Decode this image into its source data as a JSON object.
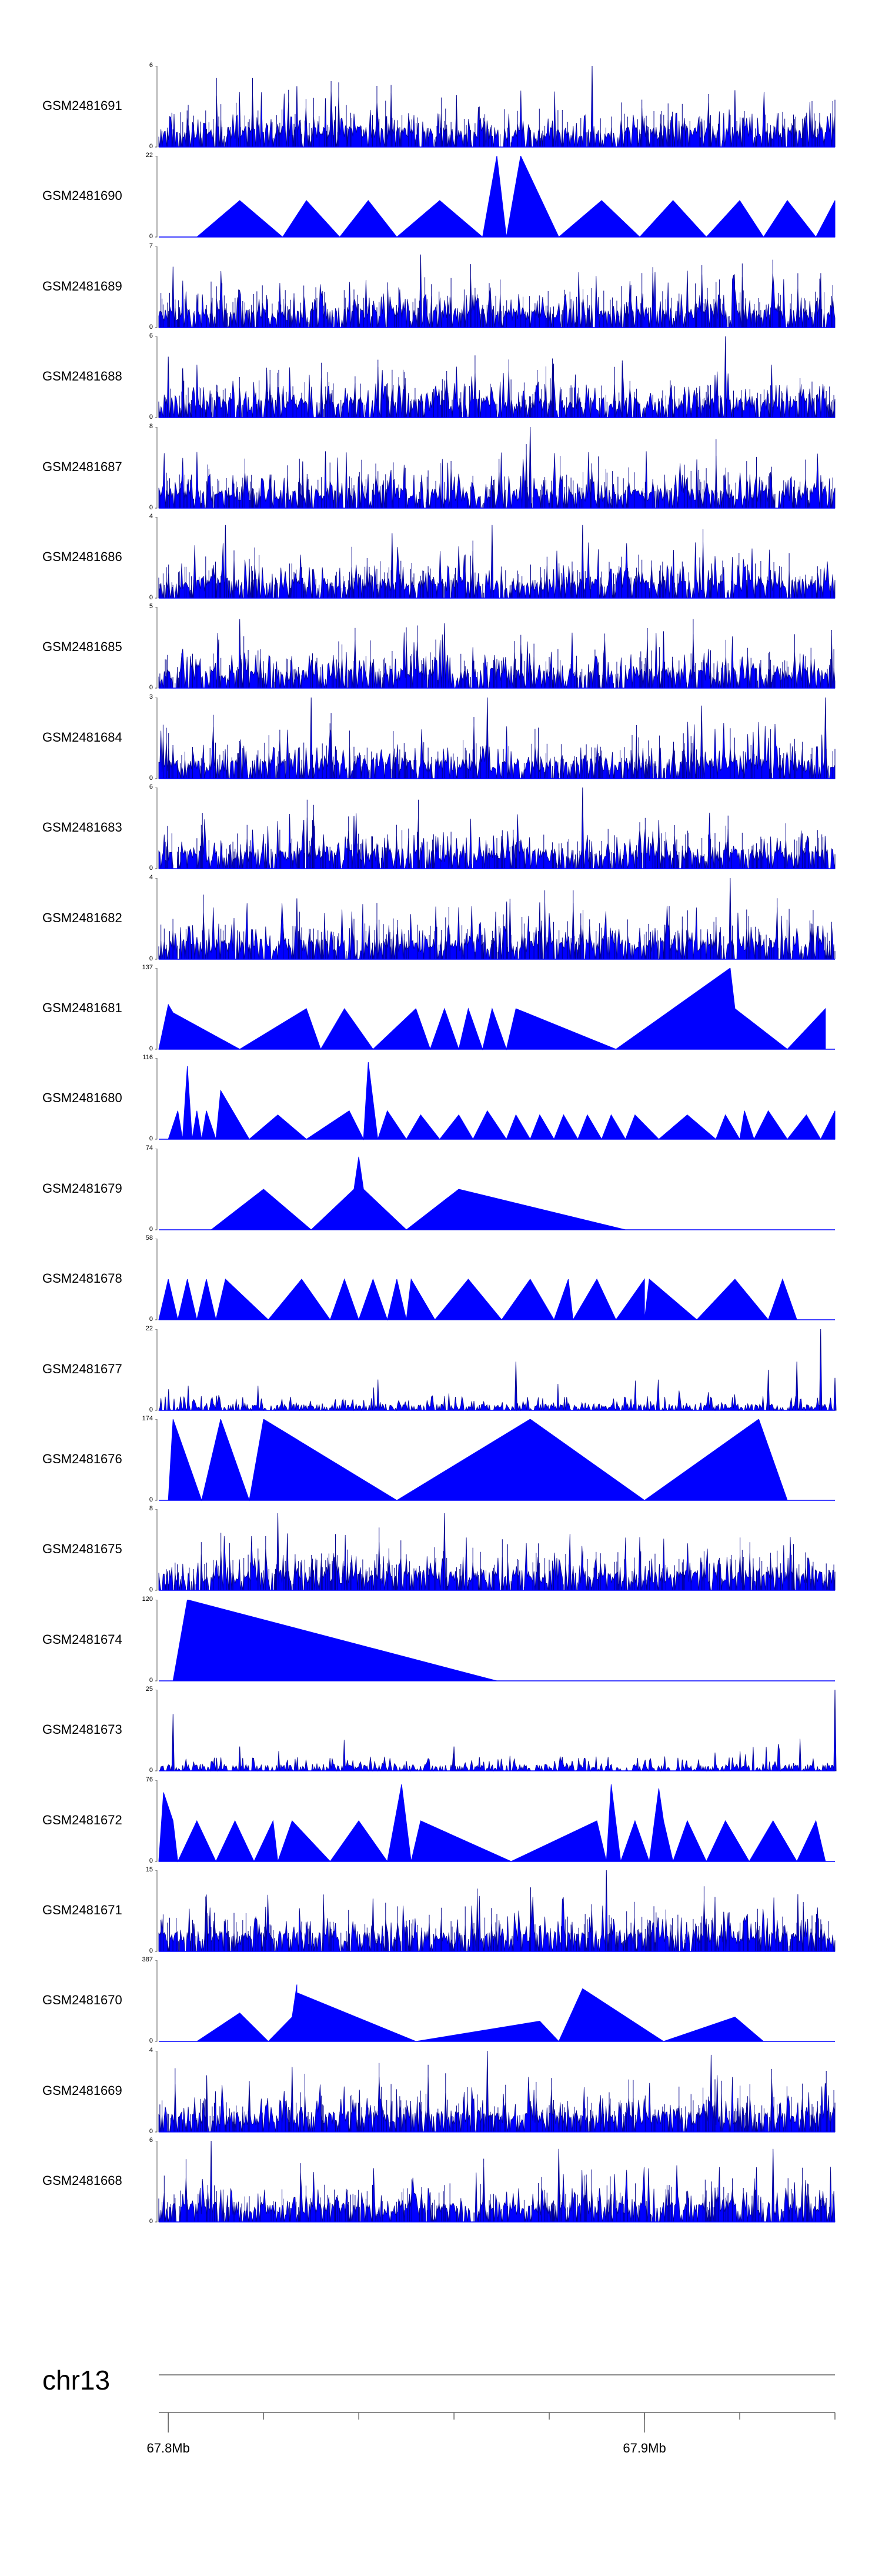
{
  "chart_data": {
    "type": "area",
    "chromosome": "chr13",
    "xlim": [
      67.798,
      67.94
    ],
    "x_unit": "Mb",
    "x_tick_labels": [
      "67.8Mb",
      "67.9Mb"
    ],
    "x_tick_positions": [
      67.8,
      67.9
    ],
    "x_minor_ticks": [
      67.8,
      67.82,
      67.84,
      67.86,
      67.88,
      67.9,
      67.92,
      67.94
    ],
    "fill_color": "#0000ff",
    "stroke_color": "#00008b",
    "tracks": [
      {
        "name": "GSM2481691",
        "ymax": "6",
        "style": "dense",
        "seed": 11,
        "peaks": [
          [
            67.827,
            0.75
          ],
          [
            67.889,
            1.0
          ],
          [
            67.833,
            0.6
          ],
          [
            67.919,
            0.7
          ]
        ]
      },
      {
        "name": "GSM2481690",
        "ymax": "22",
        "style": "triangles",
        "vertices": [
          [
            67.806,
            0.0
          ],
          [
            67.815,
            0.45
          ],
          [
            67.824,
            0.0
          ],
          [
            67.829,
            0.45
          ],
          [
            67.836,
            0.0
          ],
          [
            67.842,
            0.45
          ],
          [
            67.848,
            0.0
          ],
          [
            67.857,
            0.45
          ],
          [
            67.866,
            0.0
          ],
          [
            67.869,
            1.0
          ],
          [
            67.871,
            0.0
          ],
          [
            67.874,
            1.0
          ],
          [
            67.882,
            0.0
          ],
          [
            67.891,
            0.45
          ],
          [
            67.899,
            0.0
          ],
          [
            67.906,
            0.45
          ],
          [
            67.913,
            0.0
          ],
          [
            67.92,
            0.45
          ],
          [
            67.925,
            0.0
          ],
          [
            67.93,
            0.45
          ],
          [
            67.936,
            0.0
          ],
          [
            67.94,
            0.45
          ],
          [
            67.94,
            0.0
          ]
        ]
      },
      {
        "name": "GSM2481689",
        "ymax": "7",
        "style": "dense",
        "seed": 23,
        "peaks": [
          [
            67.853,
            0.9
          ],
          [
            67.801,
            0.75
          ],
          [
            67.909,
            0.7
          ]
        ]
      },
      {
        "name": "GSM2481688",
        "ymax": "6",
        "style": "dense",
        "seed": 37,
        "peaks": [
          [
            67.917,
            1.0
          ],
          [
            67.8,
            0.75
          ],
          [
            67.803,
            0.6
          ]
        ]
      },
      {
        "name": "GSM2481687",
        "ymax": "8",
        "style": "dense",
        "seed": 41,
        "peaks": [
          [
            67.876,
            1.0
          ],
          [
            67.833,
            0.7
          ],
          [
            67.911,
            0.6
          ]
        ]
      },
      {
        "name": "GSM2481686",
        "ymax": "4",
        "style": "dense",
        "seed": 53,
        "peaks": [
          [
            67.812,
            0.9
          ],
          [
            67.868,
            0.9
          ],
          [
            67.887,
            0.9
          ],
          [
            67.847,
            0.8
          ]
        ]
      },
      {
        "name": "GSM2481685",
        "ymax": "5",
        "style": "dense",
        "seed": 67,
        "peaks": [
          [
            67.815,
            0.85
          ],
          [
            67.858,
            0.8
          ],
          [
            67.904,
            0.7
          ]
        ]
      },
      {
        "name": "GSM2481684",
        "ymax": "3",
        "style": "dense",
        "seed": 71,
        "peaks": [
          [
            67.83,
            1.0
          ],
          [
            67.867,
            1.0
          ],
          [
            67.938,
            1.0
          ],
          [
            67.912,
            0.9
          ]
        ]
      },
      {
        "name": "GSM2481683",
        "ymax": "6",
        "style": "dense",
        "seed": 83,
        "peaks": [
          [
            67.887,
            1.0
          ],
          [
            67.839,
            0.65
          ],
          [
            67.903,
            0.6
          ]
        ]
      },
      {
        "name": "GSM2481682",
        "ymax": "4",
        "style": "dense",
        "seed": 97,
        "peaks": [
          [
            67.918,
            1.0
          ],
          [
            67.827,
            0.75
          ],
          [
            67.878,
            0.7
          ]
        ]
      },
      {
        "name": "GSM2481681",
        "ymax": "137",
        "style": "triangles",
        "vertices": [
          [
            67.798,
            0.0
          ],
          [
            67.8,
            0.55
          ],
          [
            67.801,
            0.45
          ],
          [
            67.815,
            0.0
          ],
          [
            67.829,
            0.5
          ],
          [
            67.832,
            0.0
          ],
          [
            67.837,
            0.5
          ],
          [
            67.843,
            0.0
          ],
          [
            67.852,
            0.5
          ],
          [
            67.855,
            0.0
          ],
          [
            67.858,
            0.5
          ],
          [
            67.861,
            0.0
          ],
          [
            67.863,
            0.5
          ],
          [
            67.866,
            0.0
          ],
          [
            67.868,
            0.5
          ],
          [
            67.871,
            0.0
          ],
          [
            67.873,
            0.5
          ],
          [
            67.894,
            0.0
          ],
          [
            67.918,
            1.0
          ],
          [
            67.919,
            0.5
          ],
          [
            67.93,
            0.0
          ],
          [
            67.938,
            0.5
          ],
          [
            67.938,
            0.0
          ]
        ]
      },
      {
        "name": "GSM2481680",
        "ymax": "116",
        "style": "triangles",
        "vertices": [
          [
            67.8,
            0.0
          ],
          [
            67.802,
            0.35
          ],
          [
            67.803,
            0.0
          ],
          [
            67.804,
            0.9
          ],
          [
            67.805,
            0.0
          ],
          [
            67.806,
            0.35
          ],
          [
            67.807,
            0.0
          ],
          [
            67.808,
            0.35
          ],
          [
            67.81,
            0.0
          ],
          [
            67.811,
            0.6
          ],
          [
            67.817,
            0.0
          ],
          [
            67.823,
            0.3
          ],
          [
            67.829,
            0.0
          ],
          [
            67.838,
            0.35
          ],
          [
            67.841,
            0.0
          ],
          [
            67.842,
            0.95
          ],
          [
            67.844,
            0.0
          ],
          [
            67.846,
            0.35
          ],
          [
            67.85,
            0.0
          ],
          [
            67.853,
            0.3
          ],
          [
            67.857,
            0.0
          ],
          [
            67.861,
            0.3
          ],
          [
            67.864,
            0.0
          ],
          [
            67.867,
            0.35
          ],
          [
            67.871,
            0.0
          ],
          [
            67.873,
            0.3
          ],
          [
            67.876,
            0.0
          ],
          [
            67.878,
            0.3
          ],
          [
            67.881,
            0.0
          ],
          [
            67.883,
            0.3
          ],
          [
            67.886,
            0.0
          ],
          [
            67.888,
            0.3
          ],
          [
            67.891,
            0.0
          ],
          [
            67.893,
            0.3
          ],
          [
            67.896,
            0.0
          ],
          [
            67.898,
            0.3
          ],
          [
            67.903,
            0.0
          ],
          [
            67.909,
            0.3
          ],
          [
            67.915,
            0.0
          ],
          [
            67.917,
            0.3
          ],
          [
            67.92,
            0.0
          ],
          [
            67.921,
            0.35
          ],
          [
            67.923,
            0.0
          ],
          [
            67.926,
            0.35
          ],
          [
            67.93,
            0.0
          ],
          [
            67.934,
            0.3
          ],
          [
            67.937,
            0.0
          ],
          [
            67.94,
            0.35
          ],
          [
            67.94,
            0.0
          ]
        ]
      },
      {
        "name": "GSM2481679",
        "ymax": "74",
        "style": "triangles",
        "vertices": [
          [
            67.809,
            0.0
          ],
          [
            67.82,
            0.5
          ],
          [
            67.83,
            0.0
          ],
          [
            67.839,
            0.5
          ],
          [
            67.84,
            0.9
          ],
          [
            67.841,
            0.5
          ],
          [
            67.85,
            0.0
          ],
          [
            67.861,
            0.5
          ],
          [
            67.896,
            0.0
          ]
        ]
      },
      {
        "name": "GSM2481678",
        "ymax": "58",
        "style": "triangles",
        "vertices": [
          [
            67.798,
            0.0
          ],
          [
            67.8,
            0.5
          ],
          [
            67.802,
            0.0
          ],
          [
            67.804,
            0.5
          ],
          [
            67.806,
            0.0
          ],
          [
            67.808,
            0.5
          ],
          [
            67.81,
            0.0
          ],
          [
            67.812,
            0.5
          ],
          [
            67.821,
            0.0
          ],
          [
            67.828,
            0.5
          ],
          [
            67.834,
            0.0
          ],
          [
            67.837,
            0.5
          ],
          [
            67.84,
            0.0
          ],
          [
            67.843,
            0.5
          ],
          [
            67.846,
            0.0
          ],
          [
            67.848,
            0.5
          ],
          [
            67.85,
            0.0
          ],
          [
            67.851,
            0.5
          ],
          [
            67.856,
            0.0
          ],
          [
            67.863,
            0.5
          ],
          [
            67.87,
            0.0
          ],
          [
            67.876,
            0.5
          ],
          [
            67.881,
            0.0
          ],
          [
            67.884,
            0.5
          ],
          [
            67.885,
            0.0
          ],
          [
            67.89,
            0.5
          ],
          [
            67.894,
            0.0
          ],
          [
            67.9,
            0.5
          ],
          [
            67.9,
            0.0
          ],
          [
            67.901,
            0.5
          ],
          [
            67.911,
            0.0
          ],
          [
            67.919,
            0.5
          ],
          [
            67.926,
            0.0
          ],
          [
            67.929,
            0.5
          ],
          [
            67.932,
            0.0
          ]
        ]
      },
      {
        "name": "GSM2481677",
        "ymax": "22",
        "style": "sparse",
        "seed": 113,
        "peaks": [
          [
            67.937,
            1.0
          ],
          [
            67.932,
            0.6
          ],
          [
            67.926,
            0.5
          ],
          [
            67.873,
            0.6
          ],
          [
            67.94,
            0.4
          ]
        ]
      },
      {
        "name": "GSM2481676",
        "ymax": "174",
        "style": "triangles",
        "vertices": [
          [
            67.8,
            0.0
          ],
          [
            67.801,
            1.0
          ],
          [
            67.807,
            0.0
          ],
          [
            67.811,
            1.0
          ],
          [
            67.817,
            0.0
          ],
          [
            67.82,
            1.0
          ],
          [
            67.848,
            0.0
          ],
          [
            67.876,
            1.0
          ],
          [
            67.9,
            0.0
          ],
          [
            67.924,
            1.0
          ],
          [
            67.93,
            0.0
          ]
        ]
      },
      {
        "name": "GSM2481675",
        "ymax": "8",
        "style": "dense",
        "seed": 127,
        "peaks": [
          [
            67.823,
            0.95
          ],
          [
            67.858,
            0.95
          ],
          [
            67.825,
            0.7
          ]
        ]
      },
      {
        "name": "GSM2481674",
        "ymax": "120",
        "style": "triangles",
        "vertices": [
          [
            67.801,
            0.0
          ],
          [
            67.804,
            1.0
          ],
          [
            67.869,
            0.0
          ]
        ]
      },
      {
        "name": "GSM2481673",
        "ymax": "25",
        "style": "sparse",
        "seed": 131,
        "peaks": [
          [
            67.94,
            1.0
          ],
          [
            67.801,
            0.7
          ],
          [
            67.815,
            0.3
          ],
          [
            67.86,
            0.3
          ]
        ]
      },
      {
        "name": "GSM2481672",
        "ymax": "76",
        "style": "triangles",
        "vertices": [
          [
            67.798,
            0.0
          ],
          [
            67.799,
            0.85
          ],
          [
            67.801,
            0.5
          ],
          [
            67.802,
            0.0
          ],
          [
            67.806,
            0.5
          ],
          [
            67.81,
            0.0
          ],
          [
            67.814,
            0.5
          ],
          [
            67.818,
            0.0
          ],
          [
            67.822,
            0.5
          ],
          [
            67.823,
            0.0
          ],
          [
            67.826,
            0.5
          ],
          [
            67.834,
            0.0
          ],
          [
            67.84,
            0.5
          ],
          [
            67.846,
            0.0
          ],
          [
            67.849,
            0.95
          ],
          [
            67.851,
            0.0
          ],
          [
            67.853,
            0.5
          ],
          [
            67.872,
            0.0
          ],
          [
            67.89,
            0.5
          ],
          [
            67.892,
            0.0
          ],
          [
            67.893,
            0.95
          ],
          [
            67.895,
            0.0
          ],
          [
            67.898,
            0.5
          ],
          [
            67.901,
            0.0
          ],
          [
            67.903,
            0.9
          ],
          [
            67.904,
            0.5
          ],
          [
            67.906,
            0.0
          ],
          [
            67.909,
            0.5
          ],
          [
            67.913,
            0.0
          ],
          [
            67.917,
            0.5
          ],
          [
            67.922,
            0.0
          ],
          [
            67.927,
            0.5
          ],
          [
            67.932,
            0.0
          ],
          [
            67.936,
            0.5
          ],
          [
            67.938,
            0.0
          ]
        ]
      },
      {
        "name": "GSM2481671",
        "ymax": "15",
        "style": "dense",
        "seed": 139,
        "peaks": [
          [
            67.892,
            1.0
          ],
          [
            67.808,
            0.7
          ],
          [
            67.843,
            0.65
          ]
        ]
      },
      {
        "name": "GSM2481670",
        "ymax": "387",
        "style": "triangles",
        "vertices": [
          [
            67.806,
            0.0
          ],
          [
            67.815,
            0.35
          ],
          [
            67.821,
            0.0
          ],
          [
            67.826,
            0.3
          ],
          [
            67.827,
            0.7
          ],
          [
            67.827,
            0.6
          ],
          [
            67.852,
            0.0
          ],
          [
            67.878,
            0.25
          ],
          [
            67.882,
            0.0
          ],
          [
            67.887,
            0.65
          ],
          [
            67.904,
            0.0
          ],
          [
            67.919,
            0.3
          ],
          [
            67.925,
            0.0
          ]
        ]
      },
      {
        "name": "GSM2481669",
        "ymax": "4",
        "style": "dense",
        "seed": 149,
        "peaks": [
          [
            67.867,
            1.0
          ],
          [
            67.914,
            0.95
          ],
          [
            67.826,
            0.8
          ]
        ]
      },
      {
        "name": "GSM2481668",
        "ymax": "6",
        "style": "dense",
        "seed": 157,
        "peaks": [
          [
            67.809,
            1.0
          ],
          [
            67.882,
            0.9
          ],
          [
            67.927,
            0.9
          ]
        ]
      }
    ]
  },
  "chromosome_label": "chr13"
}
